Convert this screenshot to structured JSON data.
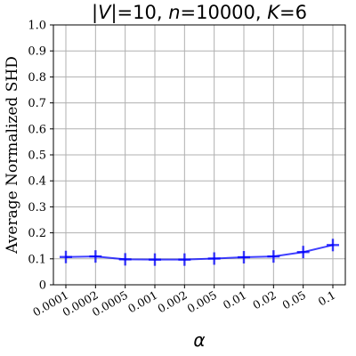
{
  "chart_data": {
    "type": "line",
    "title": "|V|=10, n=10000, K=6",
    "title_parts": [
      {
        "text": "|",
        "italic": false
      },
      {
        "text": "V",
        "italic": true
      },
      {
        "text": "|=10, ",
        "italic": false
      },
      {
        "text": "n",
        "italic": true
      },
      {
        "text": "=10000, ",
        "italic": false
      },
      {
        "text": "K",
        "italic": true
      },
      {
        "text": "=6",
        "italic": false
      }
    ],
    "xlabel": "α",
    "ylabel": "Average Normalized SHD",
    "categories": [
      "0.0001",
      "0.0002",
      "0.0005",
      "0.001",
      "0.002",
      "0.005",
      "0.01",
      "0.02",
      "0.05",
      "0.1"
    ],
    "series": [
      {
        "color": "#0000ff",
        "marker": "plus",
        "values": [
          0.107,
          0.109,
          0.098,
          0.097,
          0.097,
          0.101,
          0.106,
          0.109,
          0.126,
          0.153
        ]
      }
    ],
    "ylim": [
      0,
      1.0
    ],
    "yticks": [
      "0",
      "0.1",
      "0.2",
      "0.3",
      "0.4",
      "0.5",
      "0.6",
      "0.7",
      "0.8",
      "0.9",
      "1.0"
    ],
    "grid": true
  }
}
